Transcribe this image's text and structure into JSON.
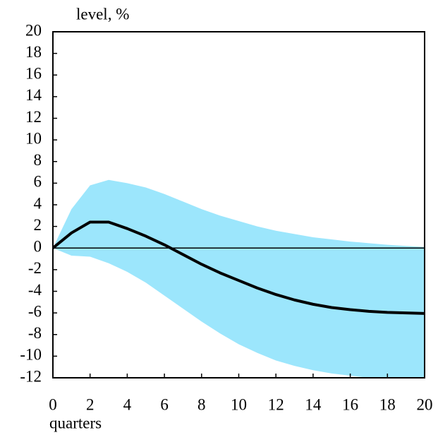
{
  "chart_data": {
    "type": "line",
    "y_label": "level, %",
    "x_label": "quarters",
    "x": [
      0,
      1,
      2,
      3,
      4,
      5,
      6,
      7,
      8,
      9,
      10,
      11,
      12,
      13,
      14,
      15,
      16,
      17,
      18,
      19,
      20
    ],
    "values": [
      0,
      1.4,
      2.4,
      2.4,
      1.8,
      1.1,
      0.3,
      -0.6,
      -1.5,
      -2.3,
      -3.0,
      -3.7,
      -4.3,
      -4.8,
      -5.2,
      -5.5,
      -5.7,
      -5.85,
      -5.95,
      -6.0,
      -6.05
    ],
    "color": "#000000",
    "band_upper": [
      0,
      3.6,
      5.8,
      6.3,
      6.0,
      5.6,
      5.0,
      4.3,
      3.6,
      3.0,
      2.5,
      2.0,
      1.6,
      1.3,
      1.0,
      0.8,
      0.6,
      0.45,
      0.3,
      0.2,
      0.1
    ],
    "band_lower": [
      0,
      -0.7,
      -0.8,
      -1.4,
      -2.2,
      -3.2,
      -4.4,
      -5.6,
      -6.8,
      -7.9,
      -8.9,
      -9.7,
      -10.4,
      -10.9,
      -11.3,
      -11.6,
      -11.8,
      -12,
      -12,
      -12,
      -12
    ],
    "band_color": "#9ce6fc",
    "xlim": [
      0,
      20
    ],
    "xticks": [
      0,
      2,
      4,
      6,
      8,
      10,
      12,
      14,
      16,
      18,
      20
    ],
    "ylim": [
      -12,
      20
    ],
    "yticks": [
      20,
      18,
      16,
      14,
      12,
      10,
      8,
      6,
      4,
      2,
      0,
      -2,
      -4,
      -6,
      -8,
      -10,
      -12
    ]
  }
}
